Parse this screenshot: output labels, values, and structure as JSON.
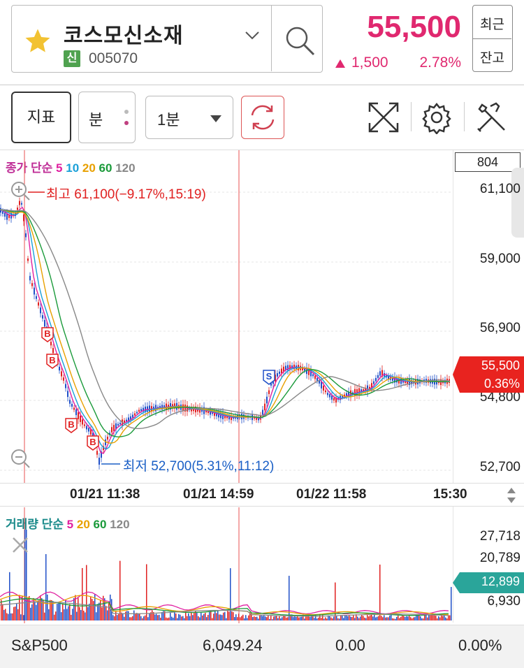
{
  "stock": {
    "name": "코스모신소재",
    "badge": "신",
    "code": "005070",
    "price": "55,500",
    "change": "1,500",
    "change_pct": "2.78%"
  },
  "toggle": {
    "recent": "최근",
    "balance": "잔고"
  },
  "toolbar": {
    "indicator_label": "지표",
    "minute_label": "분",
    "interval_value": "1분"
  },
  "price_chart": {
    "legend": {
      "prefix": "종가 단순",
      "ma5": "5",
      "ma10": "10",
      "ma20": "20",
      "ma60": "60",
      "ma120": "120"
    },
    "volume_box": "804",
    "y_ticks": [
      "61,100",
      "59,000",
      "56,900",
      "54,800",
      "52,700"
    ],
    "high_label": "최고 61,100(−9.17%,15:19)",
    "low_label": "최저 52,700(5.31%,11:12)",
    "current_price": "55,500",
    "current_pct": "0.36%",
    "markers": [
      "B",
      "B",
      "B",
      "B",
      "S"
    ],
    "x_ticks": [
      "01/21 11:38",
      "01/21 14:59",
      "01/22 11:58",
      "15:30"
    ],
    "colors": {
      "ma5": "#e020a0",
      "ma10": "#1aa0d8",
      "ma20": "#e8a000",
      "ma60": "#1a9a3a",
      "ma120": "#888888",
      "up": "#e02020",
      "down": "#2050c8"
    }
  },
  "volume_chart": {
    "legend": {
      "prefix": "거래량 단순",
      "ma5": "5",
      "ma20": "20",
      "ma60": "60",
      "ma120": "120"
    },
    "y_ticks": [
      "27,718",
      "20,789",
      "6,930"
    ],
    "current_volume": "12,899"
  },
  "footer": {
    "index_name": "S&P500",
    "index_value": "6,049.24",
    "index_change": "0.00",
    "index_pct": "0.00%"
  }
}
